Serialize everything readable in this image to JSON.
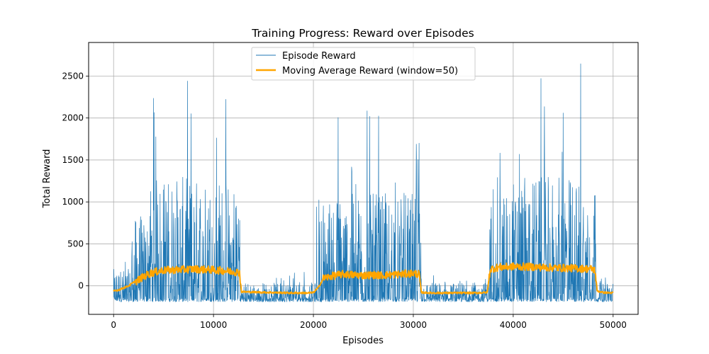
{
  "chart_data": {
    "type": "line",
    "title": "Training Progress: Reward over Episodes",
    "xlabel": "Episodes",
    "ylabel": "Total Reward",
    "xlim": [
      -2500,
      52500
    ],
    "ylim": [
      -340,
      2900
    ],
    "xticks": [
      0,
      10000,
      20000,
      30000,
      40000,
      50000
    ],
    "yticks": [
      0,
      500,
      1000,
      1500,
      2000,
      2500
    ],
    "grid": true,
    "legend_position": "top-center",
    "colors": {
      "episode": "#1f77b4",
      "moving_avg": "#ffa500"
    },
    "series": [
      {
        "name": "Episode Reward",
        "description": "raw per-episode reward, high-frequency noise",
        "segments": [
          {
            "x_start": 0,
            "x_end": 1800,
            "min": -190,
            "typical_max": 200,
            "max": 370
          },
          {
            "x_start": 1800,
            "x_end": 3500,
            "min": -190,
            "typical_max": 800,
            "max": 1550
          },
          {
            "x_start": 3500,
            "x_end": 12700,
            "min": -190,
            "typical_max": 1300,
            "max": 2480
          },
          {
            "x_start": 12700,
            "x_end": 20300,
            "min": -190,
            "typical_max": 40,
            "max": 180
          },
          {
            "x_start": 20300,
            "x_end": 30800,
            "min": -190,
            "typical_max": 1100,
            "max": 2280
          },
          {
            "x_start": 30800,
            "x_end": 37600,
            "min": -190,
            "typical_max": 40,
            "max": 150
          },
          {
            "x_start": 37600,
            "x_end": 48300,
            "min": -190,
            "typical_max": 1300,
            "max": 2740
          },
          {
            "x_start": 48300,
            "x_end": 50000,
            "min": -190,
            "typical_max": 40,
            "max": 120
          }
        ]
      },
      {
        "name": "Moving Average Reward (window=50)",
        "x": [
          0,
          500,
          1000,
          1500,
          2000,
          2500,
          3000,
          3500,
          4000,
          4500,
          5000,
          6000,
          7000,
          8000,
          9000,
          10000,
          11000,
          12000,
          12600,
          12800,
          14000,
          16000,
          18000,
          19500,
          20000,
          20500,
          21000,
          22000,
          23000,
          24000,
          25000,
          26000,
          27000,
          28000,
          29000,
          30000,
          30600,
          30800,
          32000,
          34000,
          36000,
          37400,
          37700,
          38500,
          40000,
          42000,
          44000,
          46000,
          47000,
          48000,
          48200,
          48400,
          49000,
          50000
        ],
        "y": [
          -60,
          -50,
          -25,
          0,
          40,
          70,
          110,
          140,
          160,
          175,
          185,
          190,
          195,
          200,
          195,
          190,
          180,
          170,
          160,
          -70,
          -75,
          -80,
          -85,
          -85,
          -80,
          -20,
          90,
          120,
          140,
          130,
          125,
          130,
          125,
          135,
          140,
          150,
          140,
          -80,
          -85,
          -85,
          -85,
          -80,
          200,
          220,
          230,
          225,
          215,
          210,
          205,
          200,
          180,
          -60,
          -80,
          -85
        ]
      }
    ]
  }
}
